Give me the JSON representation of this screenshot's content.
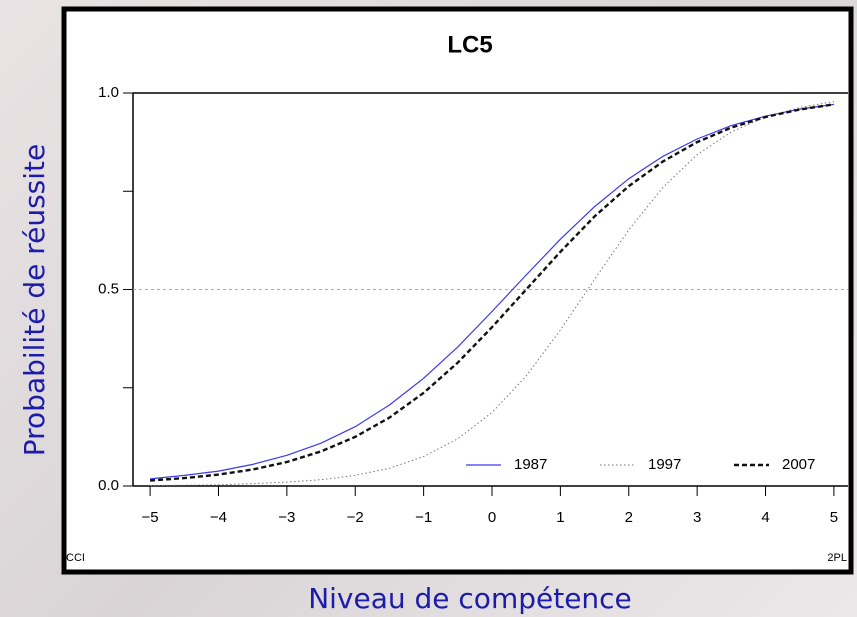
{
  "chart_data": {
    "type": "line",
    "title": "LC5",
    "xlabel": "Niveau de compétence",
    "ylabel": "Probabilité de réussite",
    "corner_left": "CCI",
    "corner_right": "2PL",
    "x": [
      -5,
      -4.5,
      -4,
      -3.5,
      -3,
      -2.5,
      -2,
      -1.5,
      -1,
      -0.5,
      0,
      0.5,
      1,
      1.5,
      2,
      2.5,
      3,
      3.5,
      4,
      4.5,
      5
    ],
    "series": [
      {
        "name": "1987",
        "color": "#3a3af0",
        "style": "solid",
        "values": [
          0.018,
          0.027,
          0.038,
          0.055,
          0.078,
          0.109,
          0.151,
          0.206,
          0.274,
          0.354,
          0.444,
          0.537,
          0.628,
          0.711,
          0.782,
          0.839,
          0.883,
          0.917,
          0.941,
          0.959,
          0.971
        ]
      },
      {
        "name": "1997",
        "color": "#777777",
        "style": "dotted",
        "values": [
          0.001,
          0.002,
          0.003,
          0.006,
          0.01,
          0.016,
          0.027,
          0.045,
          0.075,
          0.12,
          0.187,
          0.28,
          0.397,
          0.526,
          0.652,
          0.76,
          0.843,
          0.901,
          0.939,
          0.963,
          0.978
        ]
      },
      {
        "name": "2007",
        "color": "#111111",
        "style": "dashed",
        "values": [
          0.014,
          0.02,
          0.029,
          0.042,
          0.061,
          0.088,
          0.125,
          0.174,
          0.237,
          0.314,
          0.404,
          0.5,
          0.596,
          0.686,
          0.763,
          0.826,
          0.875,
          0.912,
          0.939,
          0.958,
          0.971
        ]
      }
    ],
    "xlim": [
      -5.25,
      5.25
    ],
    "xticks": [
      {
        "value": -5,
        "label": "−5"
      },
      {
        "value": -4,
        "label": "−4"
      },
      {
        "value": -3,
        "label": "−3"
      },
      {
        "value": -2,
        "label": "−2"
      },
      {
        "value": -1,
        "label": "−1"
      },
      0,
      1,
      2,
      3,
      4,
      5
    ],
    "ylim": [
      0,
      1
    ],
    "yticks": [
      {
        "value": 0,
        "label": "0.0"
      },
      {
        "value": 0.5,
        "label": "0.5"
      },
      {
        "value": 1,
        "label": "1.0"
      }
    ],
    "yminor_ticks": [
      0.25,
      0.75
    ],
    "reference_line": 0.5,
    "legend": "lower right"
  }
}
